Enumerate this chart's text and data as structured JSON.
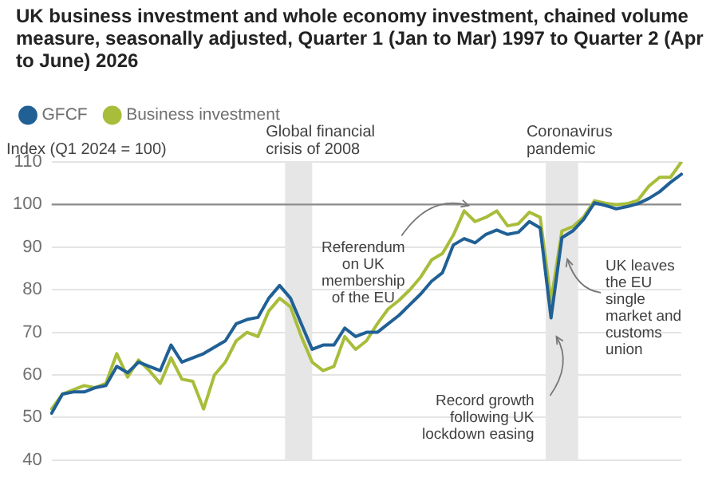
{
  "chart_data": {
    "type": "line",
    "title": "UK business investment and whole economy investment, chained volume measure, seasonally adjusted, Quarter 1 (Jan to Mar) 1997 to Quarter 2 (Apr to June) 2026",
    "ylabel": "Index (Q1 2024 = 100)",
    "categories": [
      null,
      null,
      null,
      null,
      null,
      null,
      null,
      null,
      null,
      null,
      null,
      null,
      null,
      null,
      null,
      null,
      null,
      null,
      null,
      null,
      null,
      null,
      null,
      null,
      null,
      null,
      null,
      null,
      null,
      null,
      null,
      null,
      null,
      null,
      null,
      null,
      null,
      null,
      null,
      null,
      null,
      null,
      null,
      null,
      null,
      null,
      null,
      null,
      null,
      null,
      null,
      null,
      null,
      null,
      null,
      null,
      null,
      null,
      null
    ],
    "series": [
      {
        "name": "GFCF",
        "color": "#206095",
        "values": [
          51,
          55.5,
          56,
          56,
          57,
          57.5,
          62,
          60.5,
          63,
          62,
          61,
          67,
          63,
          64,
          65,
          66.5,
          68,
          72,
          73,
          73.5,
          78,
          81,
          78,
          72,
          66,
          67,
          67,
          71,
          69,
          70,
          70,
          72,
          74,
          76.5,
          79,
          82,
          84,
          90.5,
          92,
          91,
          93,
          94,
          93,
          93.5,
          96,
          94.5,
          73.4,
          92.2,
          93.8,
          96.5,
          100.4,
          99.8,
          99,
          99.5,
          100.2,
          101.4,
          103,
          105.2,
          107.1
        ]
      },
      {
        "name": "Business investment",
        "color": "#a8bd3a",
        "values": [
          52,
          55.5,
          56.5,
          57.5,
          57,
          58,
          65,
          59.5,
          63.5,
          61,
          58,
          64,
          59,
          58.5,
          52,
          60,
          63,
          68,
          70,
          69,
          75,
          78,
          76,
          69,
          63,
          61,
          62,
          69,
          66,
          68,
          72,
          75.5,
          77.5,
          80,
          83,
          87,
          88.5,
          92.8,
          98.5,
          96,
          97,
          98.5,
          95,
          95.5,
          98.2,
          97,
          77.3,
          93.8,
          94.8,
          97.1,
          100.9,
          100.3,
          100,
          100.2,
          101,
          104.3,
          106.4,
          106.4,
          110
        ]
      }
    ],
    "ylim": [
      40,
      110
    ],
    "yticks": [
      40,
      50,
      60,
      70,
      80,
      90,
      100,
      110
    ],
    "tick_labels": "y",
    "grid": "y",
    "legend": "top left",
    "marker": "none",
    "line_style": "solid",
    "ref_lines": [
      {
        "axis": "y",
        "value": 100,
        "color": "#8c8c8c"
      }
    ],
    "annotations": [
      "Global financial crisis of 2008",
      "Coronavirus pandemic",
      {
        "text": "Referendum on UK membership of the EU",
        "y": 100.9
      },
      "Record growth following UK lockdown easing",
      "UK leaves the EU single market and customs union"
    ]
  }
}
